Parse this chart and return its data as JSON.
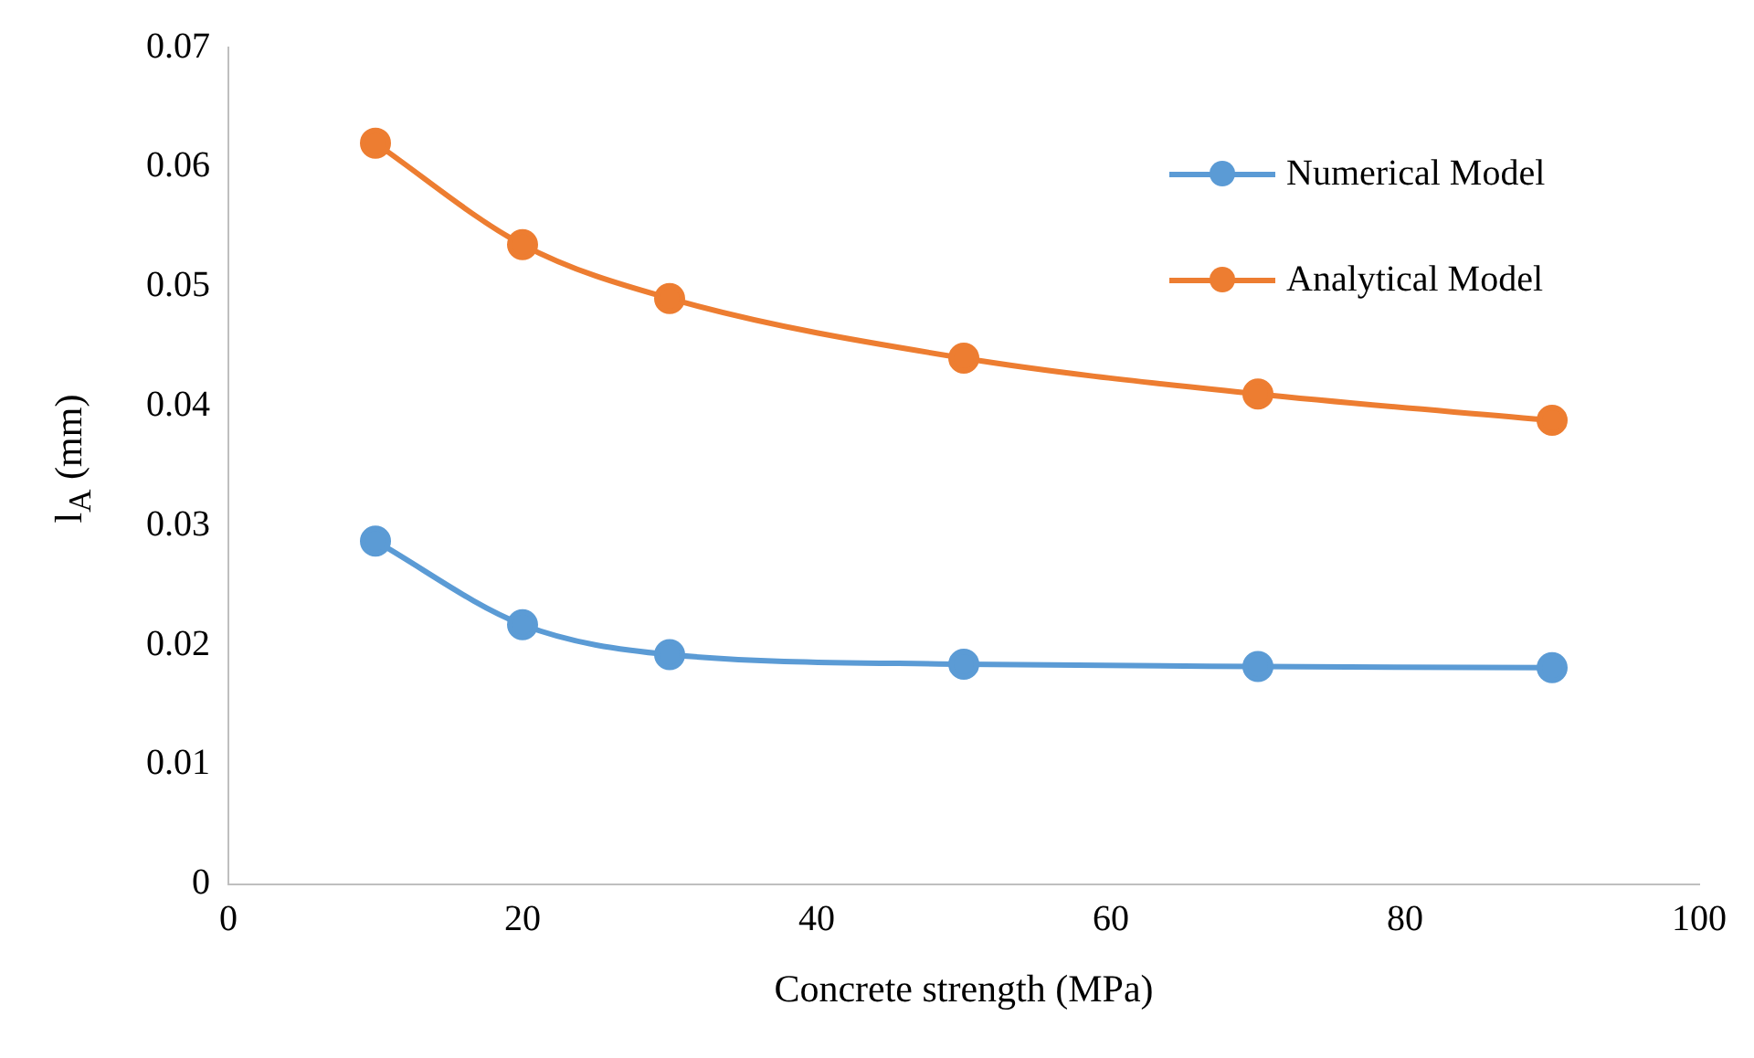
{
  "chart_data": {
    "type": "line",
    "xlabel": "Concrete strength (MPa)",
    "ylabel": "l$_{A}$ (mm)",
    "x": [
      10,
      20,
      30,
      50,
      70,
      90
    ],
    "series": [
      {
        "name": "Numerical Model",
        "color": "#5b9bd5",
        "values": [
          0.0287,
          0.0217,
          0.0192,
          0.0184,
          0.0182,
          0.0181
        ]
      },
      {
        "name": "Analytical Model",
        "color": "#ed7d31",
        "values": [
          0.062,
          0.0535,
          0.049,
          0.044,
          0.041,
          0.0388
        ]
      }
    ],
    "xlim": [
      0,
      100
    ],
    "xticks": [
      0,
      20,
      40,
      60,
      80,
      100
    ],
    "ylim": [
      0,
      0.07
    ],
    "yticks": [
      0,
      0.01,
      0.02,
      0.03,
      0.04,
      0.05,
      0.06,
      0.07
    ],
    "grid": false,
    "legend": "top right",
    "marker": "circle",
    "line_style": "solid"
  }
}
